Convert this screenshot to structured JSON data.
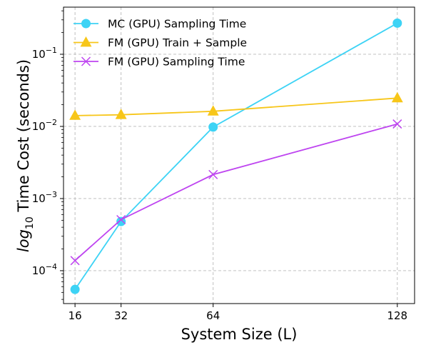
{
  "chart_data": {
    "type": "line",
    "title": "",
    "xlabel": "System Size (L)",
    "ylabel_parts": {
      "base": "log",
      "sub": "10",
      "rest": " Time Cost (seconds)"
    },
    "x": [
      16,
      32,
      64,
      128
    ],
    "x_ticks": [
      "16",
      "32",
      "64",
      "128"
    ],
    "xlim": [
      12,
      134
    ],
    "y_scale": "log",
    "ylim": [
      3.5e-05,
      0.45
    ],
    "y_ticks": [
      {
        "value": 0.0001,
        "exp": "−4"
      },
      {
        "value": 0.001,
        "exp": "−3"
      },
      {
        "value": 0.01,
        "exp": "−2"
      },
      {
        "value": 0.1,
        "exp": "−1"
      }
    ],
    "grid": true,
    "legend_position": "top-left",
    "series": [
      {
        "name": "MC (GPU) Sampling Time",
        "color": "#3dd3f5",
        "marker": "circle",
        "values": [
          5.5e-05,
          0.00048,
          0.0098,
          0.27
        ]
      },
      {
        "name": "FM (GPU) Train + Sample",
        "color": "#f7c619",
        "marker": "triangle",
        "values": [
          0.0141,
          0.0145,
          0.0162,
          0.0247
        ]
      },
      {
        "name": "FM (GPU) Sampling Time",
        "color": "#be44f0",
        "marker": "x",
        "values": [
          0.000138,
          0.00051,
          0.00215,
          0.0108
        ]
      }
    ]
  }
}
